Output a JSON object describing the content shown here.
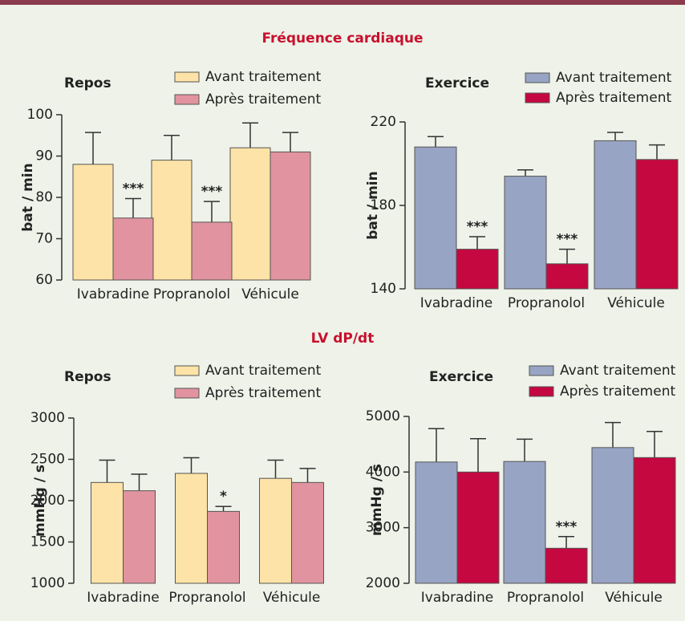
{
  "headings": [
    "Fréquence cardiaque",
    "LV dP/dt"
  ],
  "chart_data": [
    {
      "type": "bar",
      "title": "Repos",
      "ylabel": "bat / min",
      "title_color": "#5e7d55",
      "categories": [
        "Ivabradine",
        "Propranolol",
        "Véhicule"
      ],
      "series": [
        {
          "name": "Avant traitement",
          "color": "#fde3a7",
          "values": [
            88,
            89,
            92
          ],
          "errors": [
            7.7,
            6,
            6
          ]
        },
        {
          "name": "Après traitement",
          "color": "#e1949f",
          "values": [
            75,
            74,
            91
          ],
          "errors": [
            4.7,
            5,
            4.7
          ]
        }
      ],
      "ylim": [
        60,
        100
      ],
      "yticks": [
        60,
        70,
        80,
        90,
        100
      ],
      "annotations": [
        {
          "text": "***",
          "series": 1,
          "category": 0
        },
        {
          "text": "***",
          "series": 1,
          "category": 1
        }
      ]
    },
    {
      "type": "bar",
      "title": "Exercice",
      "ylabel": "bat / min",
      "title_color": "#c47c9c",
      "categories": [
        "Ivabradine",
        "Propranolol",
        "Véhicule"
      ],
      "series": [
        {
          "name": "Avant traitement",
          "color": "#98a4c4",
          "values": [
            208,
            194,
            211
          ],
          "errors": [
            5,
            3,
            4
          ]
        },
        {
          "name": "Après traitement",
          "color": "#c5083f",
          "values": [
            159,
            152,
            202
          ],
          "errors": [
            6,
            7,
            7
          ]
        }
      ],
      "ylim": [
        140,
        220
      ],
      "yticks": [
        140,
        180,
        220
      ],
      "annotations": [
        {
          "text": "***",
          "series": 1,
          "category": 0
        },
        {
          "text": "***",
          "series": 1,
          "category": 1
        }
      ]
    },
    {
      "type": "bar",
      "title": "Repos",
      "ylabel": "mmHg / s",
      "title_color": "#5e7d55",
      "categories": [
        "Ivabradine",
        "Propranolol",
        "Véhicule"
      ],
      "series": [
        {
          "name": "Avant traitement",
          "color": "#fde3a7",
          "values": [
            2220,
            2330,
            2270
          ],
          "errors": [
            270,
            190,
            220
          ]
        },
        {
          "name": "Après traitement",
          "color": "#e1949f",
          "values": [
            2120,
            1870,
            2220
          ],
          "errors": [
            200,
            60,
            170
          ]
        }
      ],
      "ylim": [
        1000,
        3000
      ],
      "yticks": [
        1000,
        1500,
        2000,
        2500,
        3000
      ],
      "annotations": [
        {
          "text": "*",
          "series": 1,
          "category": 1
        }
      ]
    },
    {
      "type": "bar",
      "title": "Exercice",
      "ylabel": "mmHg / s",
      "title_color": "#c47c9c",
      "categories": [
        "Ivabradine",
        "Propranolol",
        "Véhicule"
      ],
      "series": [
        {
          "name": "Avant traitement",
          "color": "#98a4c4",
          "values": [
            4180,
            4190,
            4440
          ],
          "errors": [
            600,
            400,
            450
          ]
        },
        {
          "name": "Après traitement",
          "color": "#c5083f",
          "values": [
            4000,
            2630,
            4260
          ],
          "errors": [
            600,
            210,
            470
          ]
        }
      ],
      "ylim": [
        2000,
        5000
      ],
      "yticks": [
        2000,
        3000,
        4000,
        5000
      ],
      "annotations": [
        {
          "text": "***",
          "series": 1,
          "category": 1
        }
      ]
    }
  ]
}
